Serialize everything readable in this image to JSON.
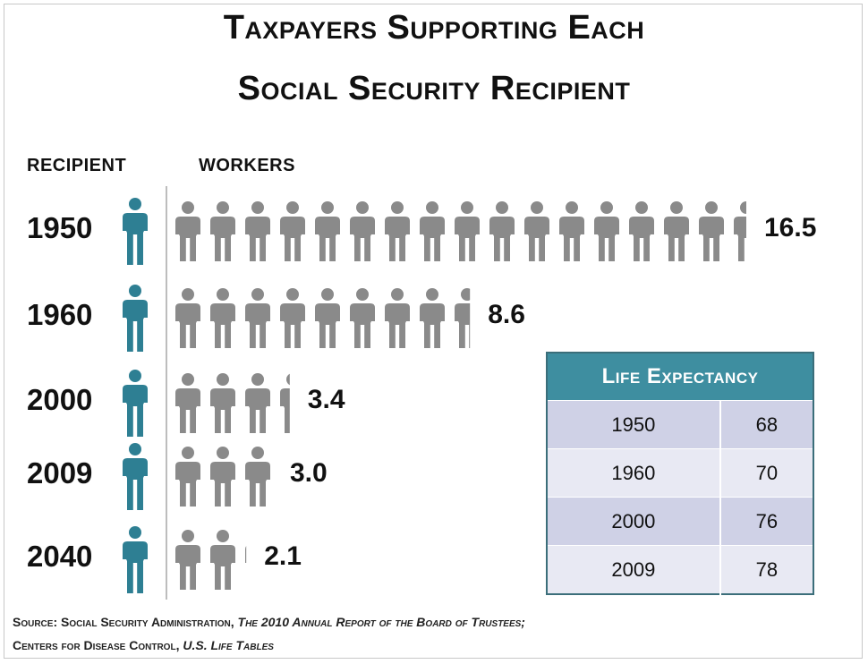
{
  "title": {
    "line1": "Taxpayers Supporting Each",
    "line2": "Social Security Recipient"
  },
  "headers": {
    "recipient": "RECIPIENT",
    "workers": "WORKERS"
  },
  "chart_data": {
    "type": "bar",
    "categories": [
      "1950",
      "1960",
      "2000",
      "2009",
      "2040"
    ],
    "values": [
      16.5,
      8.6,
      3.4,
      3.0,
      2.1
    ],
    "value_labels": [
      "16.5",
      "8.6",
      "3.4",
      "3.0",
      "2.1"
    ],
    "unit_icon": "person-icon",
    "colors": {
      "recipient": "#2e7f93",
      "worker": "#8a8a8a"
    }
  },
  "life_expectancy": {
    "header": "Life Expectancy",
    "rows": [
      {
        "year": "1950",
        "value": "68"
      },
      {
        "year": "1960",
        "value": "70"
      },
      {
        "year": "2000",
        "value": "76"
      },
      {
        "year": "2009",
        "value": "78"
      }
    ],
    "colors": {
      "header_bg": "#3e8ea0",
      "row_dark": "#cfd1e6",
      "row_light": "#e8e9f3"
    }
  },
  "source": {
    "line1_plain": "Source: Social Security  Administration, ",
    "line1_italic": "The 2010 Annual Report of the Board of Trustees;",
    "line2_plain": "Centers for Disease Control, ",
    "line2_italic": "U.S. Life Tables"
  }
}
